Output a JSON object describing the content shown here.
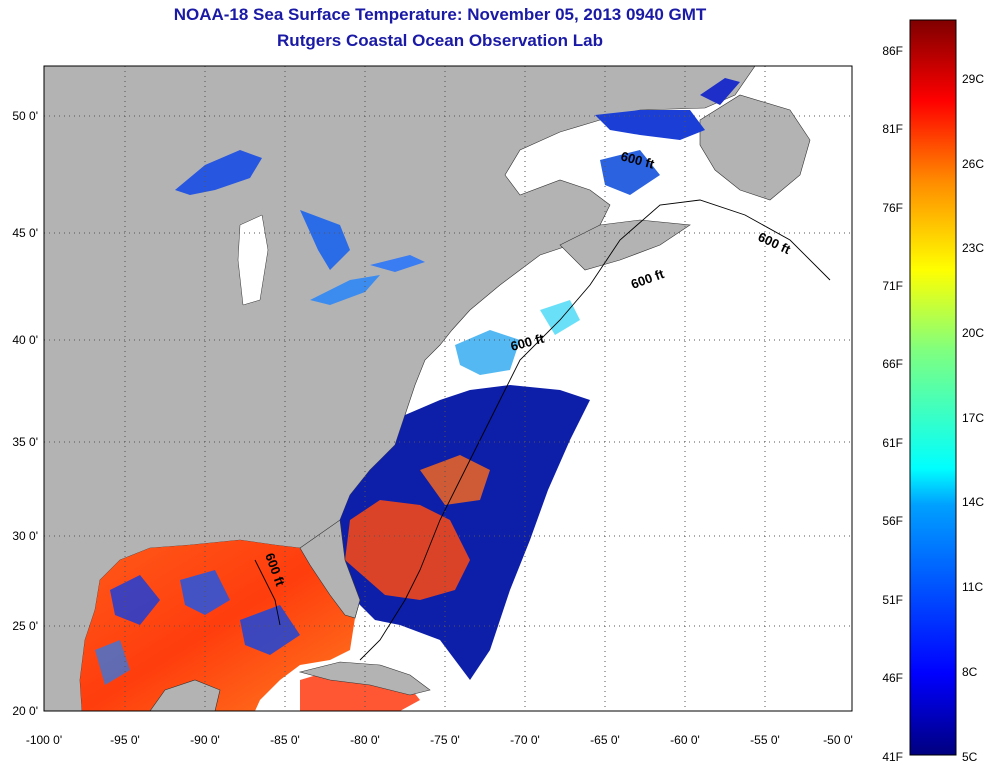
{
  "header": {
    "title": "NOAA-18 Sea Surface Temperature:  November 05, 2013 0940 GMT",
    "subtitle": "Rutgers Coastal Ocean Observation Lab"
  },
  "map": {
    "lon_ticks": [
      "-100 0'",
      "-95 0'",
      "-90 0'",
      "-85 0'",
      "-80 0'",
      "-75 0'",
      "-70 0'",
      "-65 0'",
      "-60 0'",
      "-55 0'",
      "-50 0'"
    ],
    "lat_ticks": [
      "50 0'",
      "45 0'",
      "40 0'",
      "35 0'",
      "30 0'",
      "25 0'",
      "20 0'"
    ],
    "contour_label": "600 ft",
    "colors": {
      "land": "#b3b3b3",
      "water_nodata": "#ffffff",
      "grid": "#555555"
    }
  },
  "colorbar": {
    "fahrenheit_labels": [
      "86F",
      "81F",
      "76F",
      "71F",
      "66F",
      "61F",
      "56F",
      "51F",
      "46F",
      "41F"
    ],
    "celsius_labels": [
      "29C",
      "26C",
      "23C",
      "20C",
      "17C",
      "14C",
      "11C",
      "8C",
      "5C"
    ],
    "colormap": "jet"
  }
}
